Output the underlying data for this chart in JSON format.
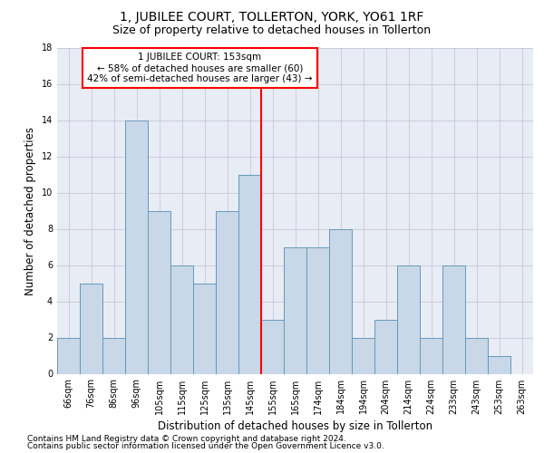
{
  "title": "1, JUBILEE COURT, TOLLERTON, YORK, YO61 1RF",
  "subtitle": "Size of property relative to detached houses in Tollerton",
  "xlabel": "Distribution of detached houses by size in Tollerton",
  "ylabel": "Number of detached properties",
  "categories": [
    "66sqm",
    "76sqm",
    "86sqm",
    "96sqm",
    "105sqm",
    "115sqm",
    "125sqm",
    "135sqm",
    "145sqm",
    "155sqm",
    "165sqm",
    "174sqm",
    "184sqm",
    "194sqm",
    "204sqm",
    "214sqm",
    "224sqm",
    "233sqm",
    "243sqm",
    "253sqm",
    "263sqm"
  ],
  "values": [
    2,
    5,
    2,
    14,
    9,
    6,
    5,
    9,
    11,
    3,
    7,
    7,
    8,
    2,
    3,
    6,
    2,
    6,
    2,
    1,
    0
  ],
  "bar_color": "#C8D8E8",
  "bar_edge_color": "#6699BB",
  "vline_x_index": 8.5,
  "vline_color": "red",
  "annotation_text": "1 JUBILEE COURT: 153sqm\n← 58% of detached houses are smaller (60)\n42% of semi-detached houses are larger (43) →",
  "annotation_box_color": "white",
  "annotation_box_edge_color": "red",
  "ylim": [
    0,
    18
  ],
  "yticks": [
    0,
    2,
    4,
    6,
    8,
    10,
    12,
    14,
    16,
    18
  ],
  "grid_color": "#CCCCDD",
  "background_color": "#E8ECF4",
  "footer_line1": "Contains HM Land Registry data © Crown copyright and database right 2024.",
  "footer_line2": "Contains public sector information licensed under the Open Government Licence v3.0.",
  "title_fontsize": 10,
  "subtitle_fontsize": 9,
  "xlabel_fontsize": 8.5,
  "ylabel_fontsize": 8.5,
  "tick_fontsize": 7,
  "footer_fontsize": 6.5,
  "annot_fontsize": 7.5
}
